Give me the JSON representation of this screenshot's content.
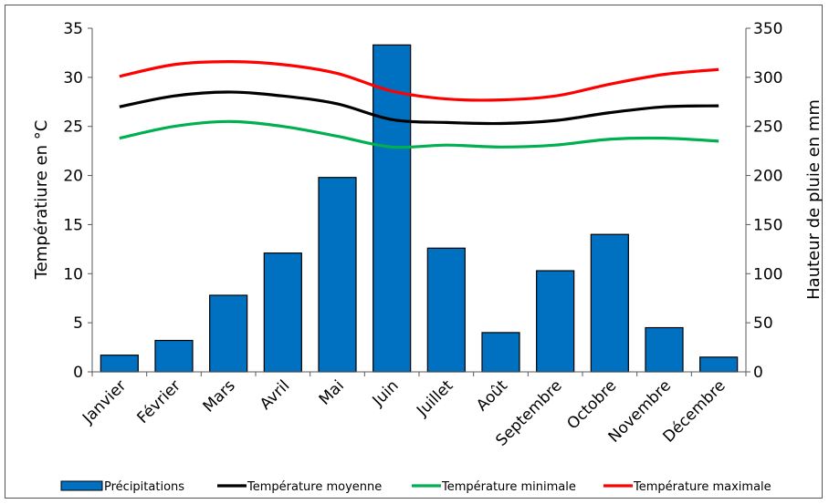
{
  "chart_data": {
    "type": "bar",
    "categories": [
      "Janvier",
      "Février",
      "Mars",
      "Avril",
      "Mai",
      "Juin",
      "Juillet",
      "Août",
      "Septembre",
      "Octobre",
      "Novembre",
      "Décembre"
    ],
    "ylabel_left": "Températiure en °C",
    "ylabel_right": "Hauteur de pluie en mm",
    "ylim_left": [
      0,
      35
    ],
    "ylim_right": [
      0,
      350
    ],
    "yticks_left": [
      0,
      5,
      10,
      15,
      20,
      25,
      30,
      35
    ],
    "yticks_right": [
      0,
      50,
      100,
      150,
      200,
      250,
      300,
      350
    ],
    "grid": false,
    "legend_position": "bottom",
    "bar_series": {
      "name": "Précipitations",
      "axis": "right",
      "color": "#0070C0",
      "values": [
        17,
        32,
        78,
        121,
        198,
        333,
        126,
        40,
        103,
        140,
        45,
        15
      ]
    },
    "line_series": [
      {
        "name": "Température moyenne",
        "axis": "left",
        "color": "#000000",
        "values": [
          27.0,
          28.1,
          28.5,
          28.1,
          27.3,
          25.7,
          25.4,
          25.3,
          25.6,
          26.4,
          27.0,
          27.1
        ]
      },
      {
        "name": "Température minimale",
        "axis": "left",
        "color": "#00B050",
        "values": [
          23.8,
          25.0,
          25.5,
          25.0,
          24.0,
          22.9,
          23.1,
          22.9,
          23.1,
          23.7,
          23.8,
          23.5
        ]
      },
      {
        "name": "Température maximale",
        "axis": "left",
        "color": "#FF0000",
        "values": [
          30.1,
          31.3,
          31.6,
          31.3,
          30.4,
          28.6,
          27.8,
          27.7,
          28.1,
          29.3,
          30.3,
          30.8
        ]
      }
    ]
  }
}
